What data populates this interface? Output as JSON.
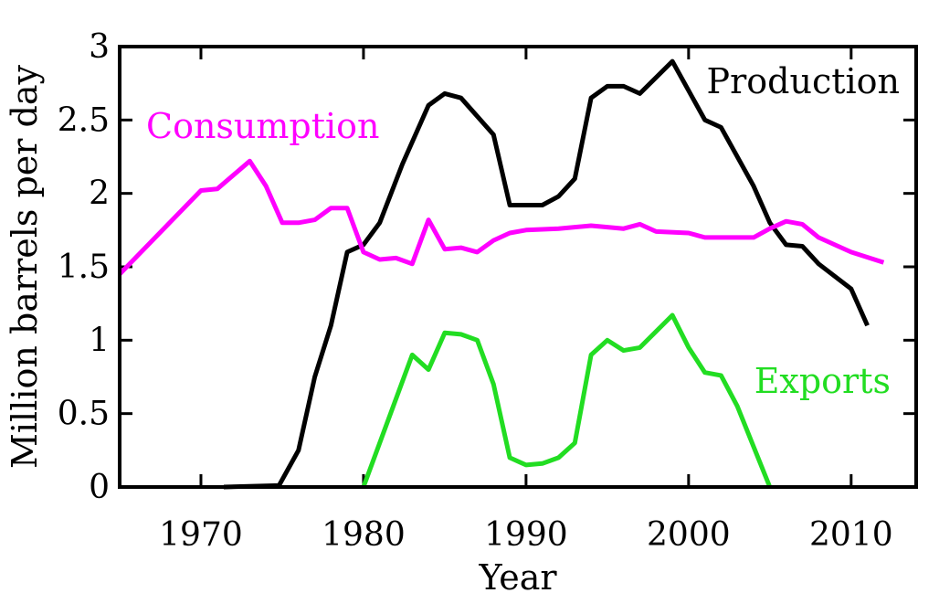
{
  "chart_data": {
    "type": "line",
    "title": "",
    "xlabel": "Year",
    "ylabel": "Million barrels per day",
    "xlim": [
      1965,
      2014
    ],
    "ylim": [
      0,
      3
    ],
    "xticks": [
      1970,
      1980,
      1990,
      2000,
      2010
    ],
    "yticks": [
      0,
      0.5,
      1,
      1.5,
      2,
      2.5,
      3
    ],
    "ytick_labels": [
      "0",
      "0.5",
      "1",
      "1.5",
      "2",
      "2.5",
      "3"
    ],
    "xtick_labels": [
      "1970",
      "1980",
      "1990",
      "2000",
      "2010"
    ],
    "grid": false,
    "series": [
      {
        "name": "Production",
        "color": "#000000",
        "x": [
          1971.4,
          1974.8,
          1976,
          1977,
          1978,
          1979,
          1980,
          1981,
          1982.4,
          1984,
          1985,
          1986,
          1988,
          1989,
          1991,
          1992,
          1993,
          1994,
          1995,
          1996,
          1997,
          1999,
          2001,
          2002,
          2004,
          2005,
          2006,
          2007,
          2008,
          2010,
          2011
        ],
        "y": [
          0,
          0.01,
          0.25,
          0.75,
          1.1,
          1.6,
          1.65,
          1.8,
          2.2,
          2.6,
          2.68,
          2.65,
          2.4,
          1.92,
          1.92,
          1.98,
          2.1,
          2.65,
          2.73,
          2.73,
          2.68,
          2.9,
          2.5,
          2.45,
          2.05,
          1.8,
          1.65,
          1.64,
          1.52,
          1.35,
          1.1
        ]
      },
      {
        "name": "Consumption",
        "color": "#ff00ff",
        "x": [
          1965,
          1970,
          1971,
          1973,
          1974,
          1975,
          1976,
          1977,
          1978,
          1979,
          1980,
          1981,
          1982,
          1983,
          1984,
          1985,
          1986,
          1987,
          1988,
          1989,
          1990,
          1992,
          1994,
          1996,
          1997,
          1998,
          2000,
          2001,
          2004,
          2005,
          2006,
          2007,
          2008,
          2010,
          2012
        ],
        "y": [
          1.45,
          2.02,
          2.03,
          2.22,
          2.05,
          1.8,
          1.8,
          1.82,
          1.9,
          1.9,
          1.6,
          1.55,
          1.56,
          1.52,
          1.82,
          1.62,
          1.63,
          1.6,
          1.68,
          1.73,
          1.75,
          1.76,
          1.78,
          1.76,
          1.79,
          1.74,
          1.73,
          1.7,
          1.7,
          1.76,
          1.81,
          1.79,
          1.7,
          1.6,
          1.53
        ]
      },
      {
        "name": "Exports",
        "color": "#22dd22",
        "x": [
          1980,
          1983,
          1984,
          1985,
          1986,
          1987,
          1988,
          1989,
          1990,
          1991,
          1992,
          1993,
          1994,
          1995,
          1996,
          1997,
          1999,
          2000,
          2001,
          2002,
          2003,
          2005
        ],
        "y": [
          0,
          0.9,
          0.8,
          1.05,
          1.04,
          1.0,
          0.7,
          0.2,
          0.15,
          0.16,
          0.2,
          0.3,
          0.9,
          1.0,
          0.93,
          0.95,
          1.17,
          0.95,
          0.78,
          0.76,
          0.55,
          0
        ]
      }
    ]
  }
}
